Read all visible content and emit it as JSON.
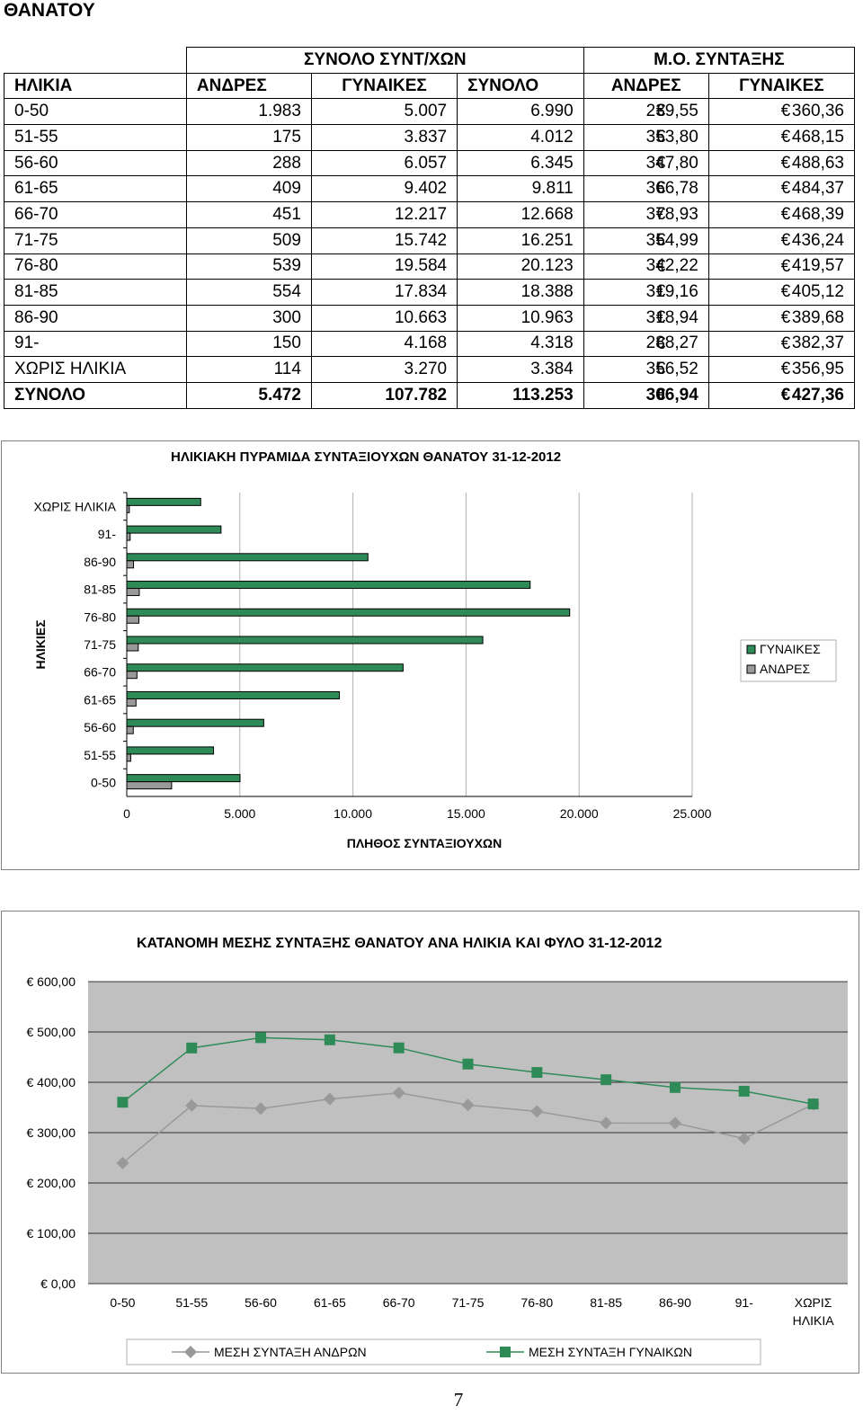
{
  "heading": "ΘΑΝΑΤΟΥ",
  "table": {
    "group_total": "ΣΥΝΟΛΟ  ΣΥΝΤ/ΧΩΝ",
    "group_avg": "Μ.Ο. ΣΥΝΤΑΞΗΣ",
    "columns": [
      "ΗΛΙΚΙΑ",
      "ΑΝΔΡΕΣ",
      "ΓΥΝΑΙΚΕΣ",
      "ΣΥΝΟΛΟ",
      "ΑΝΔΡΕΣ",
      "ΓΥΝΑΙΚΕΣ"
    ],
    "currency": "€",
    "rows": [
      [
        "0-50",
        "1.983",
        "5.007",
        "6.990",
        "239,55",
        "360,36"
      ],
      [
        "51-55",
        "175",
        "3.837",
        "4.012",
        "353,80",
        "468,15"
      ],
      [
        "56-60",
        "288",
        "6.057",
        "6.345",
        "347,80",
        "488,63"
      ],
      [
        "61-65",
        "409",
        "9.402",
        "9.811",
        "366,78",
        "484,37"
      ],
      [
        "66-70",
        "451",
        "12.217",
        "12.668",
        "378,93",
        "468,39"
      ],
      [
        "71-75",
        "509",
        "15.742",
        "16.251",
        "354,99",
        "436,24"
      ],
      [
        "76-80",
        "539",
        "19.584",
        "20.123",
        "342,22",
        "419,57"
      ],
      [
        "81-85",
        "554",
        "17.834",
        "18.388",
        "319,16",
        "405,12"
      ],
      [
        "86-90",
        "300",
        "10.663",
        "10.963",
        "318,94",
        "389,68"
      ],
      [
        "91-",
        "150",
        "4.168",
        "4.318",
        "288,27",
        "382,37"
      ],
      [
        "ΧΩΡΙΣ ΗΛΙΚΙΑ",
        "114",
        "3.270",
        "3.384",
        "356,52",
        "356,95"
      ]
    ],
    "total": [
      "ΣΥΝΟΛΟ",
      "5.472",
      "107.782",
      "113.253",
      "306,94",
      "427,36"
    ]
  },
  "chart_data": [
    {
      "type": "bar",
      "orientation": "horizontal",
      "title": "ΗΛΙΚΙΑΚΗ ΠΥΡΑΜΙΔΑ ΣΥΝΤΑΞΙΟΥΧΩΝ ΘΑΝΑΤΟΥ 31-12-2012",
      "xlabel": "ΠΛΗΘΟΣ ΣΥΝΤΑΞΙΟΥΧΩΝ",
      "ylabel": "ΗΛΙΚΙΕΣ",
      "categories": [
        "0-50",
        "51-55",
        "56-60",
        "61-65",
        "66-70",
        "71-75",
        "76-80",
        "81-85",
        "86-90",
        "91-",
        "ΧΩΡΙΣ ΗΛΙΚΙΑ"
      ],
      "series": [
        {
          "name": "ΓΥΝΑΙΚΕΣ",
          "values": [
            5007,
            3837,
            6057,
            9402,
            12217,
            15742,
            19584,
            17834,
            10663,
            4168,
            3270
          ],
          "color": "#2e8b57"
        },
        {
          "name": "ΑΝΔΡΕΣ",
          "values": [
            1983,
            175,
            288,
            409,
            451,
            509,
            539,
            554,
            300,
            150,
            114
          ],
          "color": "#999999"
        }
      ],
      "xlim": [
        0,
        25000
      ],
      "x_ticks": [
        "0",
        "5.000",
        "10.000",
        "15.000",
        "20.000",
        "25.000"
      ],
      "grid": true,
      "legend": "right"
    },
    {
      "type": "line",
      "title": "ΚΑΤΑΝΟΜΗ ΜΕΣΗΣ ΣΥΝΤΑΞΗΣ ΘΑΝΑΤΟΥ ΑΝΑ ΗΛΙΚΙΑ ΚΑΙ ΦΥΛΟ 31-12-2012",
      "categories": [
        "0-50",
        "51-55",
        "56-60",
        "61-65",
        "66-70",
        "71-75",
        "76-80",
        "81-85",
        "86-90",
        "91-",
        "ΧΩΡΙΣ ΗΛΙΚΙΑ"
      ],
      "series": [
        {
          "name": "ΜΕΣΗ ΣΥΝΤΑΞΗ ΑΝΔΡΩΝ",
          "values": [
            239.55,
            353.8,
            347.8,
            366.78,
            378.93,
            354.99,
            342.22,
            319.16,
            318.94,
            288.27,
            356.52
          ],
          "color": "#999999"
        },
        {
          "name": "ΜΕΣΗ ΣΥΝΤΑΞΗ ΓΥΝΑΙΚΩΝ",
          "values": [
            360.36,
            468.15,
            488.63,
            484.37,
            468.39,
            436.24,
            419.57,
            405.12,
            389.68,
            382.37,
            356.95
          ],
          "color": "#2e8b57"
        }
      ],
      "ylim": [
        0,
        600
      ],
      "y_ticks": [
        "€ 0,00",
        "€ 100,00",
        "€ 200,00",
        "€ 300,00",
        "€ 400,00",
        "€ 500,00",
        "€ 600,00"
      ],
      "grid": true,
      "legend": "bottom"
    }
  ],
  "page_number": "7"
}
